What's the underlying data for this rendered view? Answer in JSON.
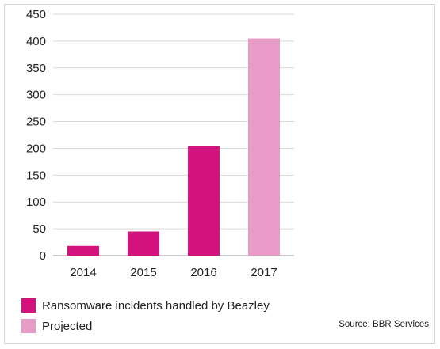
{
  "chart_data": {
    "type": "bar",
    "categories": [
      "2014",
      "2015",
      "2016",
      "2017"
    ],
    "values": [
      18,
      45,
      204,
      405
    ],
    "projected": [
      false,
      false,
      false,
      true
    ],
    "ylim": [
      0,
      450
    ],
    "yticks": [
      0,
      50,
      100,
      150,
      200,
      250,
      300,
      350,
      400,
      450
    ],
    "grid": true,
    "colors": {
      "actual": "#d4127e",
      "projected": "#e89bc6"
    },
    "legend": [
      {
        "label": "Ransomware incidents handled by Beazley",
        "color": "#d4127e"
      },
      {
        "label": "Projected",
        "color": "#e89bc6"
      }
    ],
    "source": "Source: BBR Services"
  }
}
